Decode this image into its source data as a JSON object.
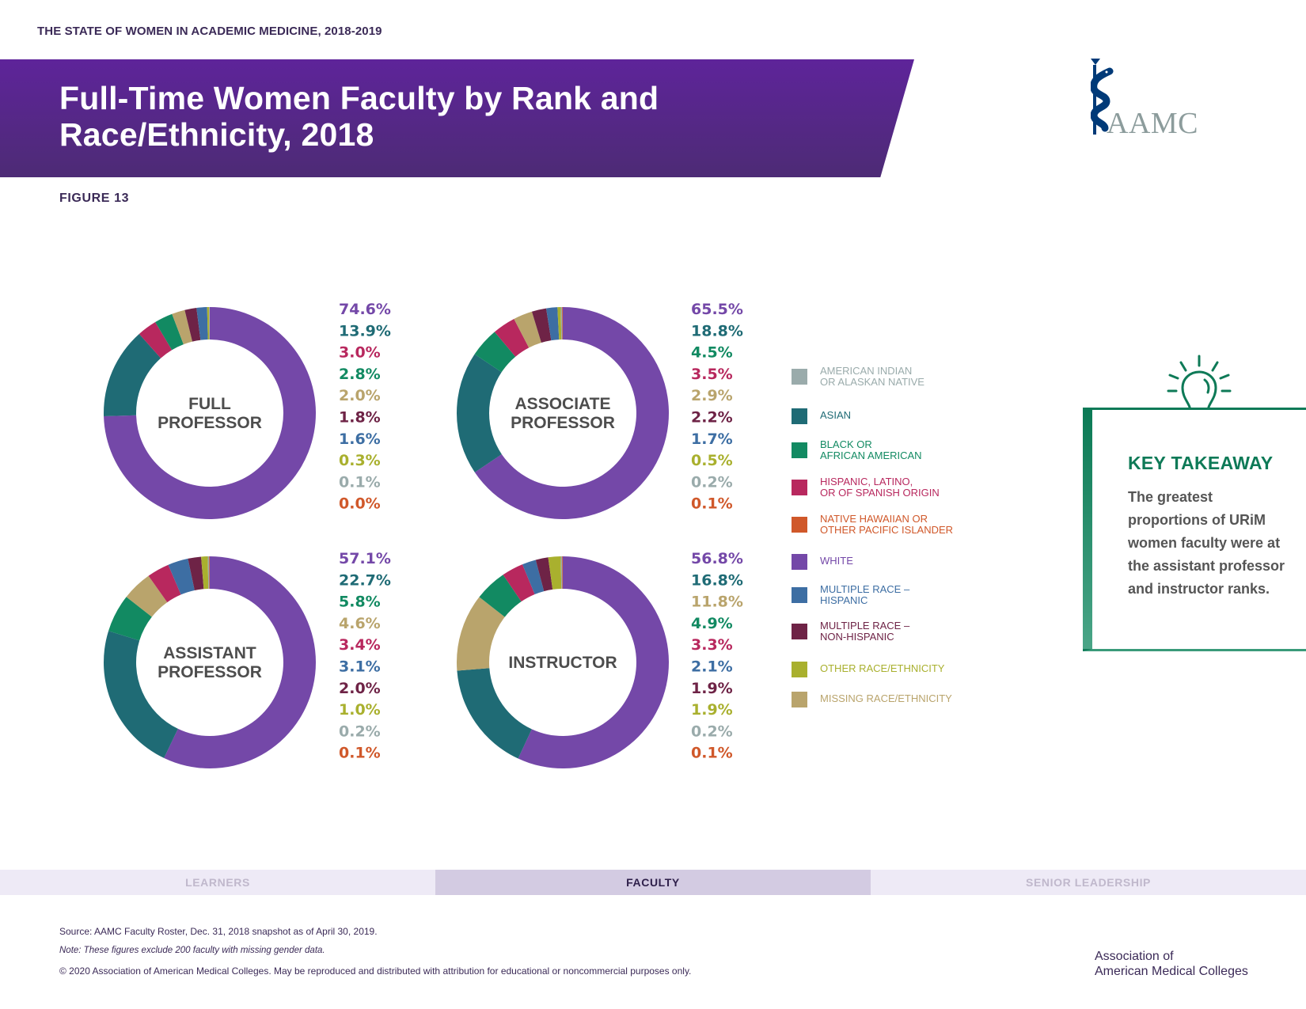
{
  "header": {
    "kicker": "THE STATE OF WOMEN IN ACADEMIC MEDICINE, 2018-2019",
    "title_line1": "Full-Time Women Faculty by Rank and",
    "title_line2": "Race/Ethnicity, 2018",
    "figure_label": "FIGURE 13",
    "logo_text": "AAMC",
    "logo_icon": "staff-of-asclepius-icon"
  },
  "colors": {
    "american_indian": "#9aabab",
    "asian": "#1f6b75",
    "black": "#128a62",
    "hispanic": "#b8285e",
    "nhpi": "#d0582a",
    "white": "#7448a8",
    "multi_hispanic": "#3d6ea3",
    "multi_non_hispanic": "#6e2346",
    "other": "#a9b02e",
    "missing": "#b9a46c",
    "banner": "#5e249a",
    "takeaway": "#0e7a57"
  },
  "chart_data": [
    {
      "type": "pie",
      "subtype": "donut",
      "title": "FULL PROFESSOR",
      "title_lines": [
        "FULL",
        "PROFESSOR"
      ],
      "categories": [
        "White",
        "Asian",
        "Hispanic, Latino, or of Spanish Origin",
        "Black or African American",
        "Missing Race/Ethnicity",
        "Multiple Race – Non-Hispanic",
        "Multiple Race – Hispanic",
        "Other Race/Ethnicity",
        "American Indian or Alaskan Native",
        "Native Hawaiian or Other Pacific Islander"
      ],
      "keys": [
        "white",
        "asian",
        "hispanic",
        "black",
        "missing",
        "multi_non_hispanic",
        "multi_hispanic",
        "other",
        "american_indian",
        "nhpi"
      ],
      "values": [
        74.6,
        13.9,
        3.0,
        2.8,
        2.0,
        1.8,
        1.6,
        0.3,
        0.1,
        0.0
      ],
      "labels": [
        "74.6%",
        "13.9%",
        "3.0%",
        "2.8%",
        "2.0%",
        "1.8%",
        "1.6%",
        "0.3%",
        "0.1%",
        "0.0%"
      ]
    },
    {
      "type": "pie",
      "subtype": "donut",
      "title": "ASSOCIATE PROFESSOR",
      "title_lines": [
        "ASSOCIATE",
        "PROFESSOR"
      ],
      "categories": [
        "White",
        "Asian",
        "Black or African American",
        "Hispanic, Latino, or of Spanish Origin",
        "Missing Race/Ethnicity",
        "Multiple Race – Non-Hispanic",
        "Multiple Race – Hispanic",
        "Other Race/Ethnicity",
        "American Indian or Alaskan Native",
        "Native Hawaiian or Other Pacific Islander"
      ],
      "keys": [
        "white",
        "asian",
        "black",
        "hispanic",
        "missing",
        "multi_non_hispanic",
        "multi_hispanic",
        "other",
        "american_indian",
        "nhpi"
      ],
      "values": [
        65.5,
        18.8,
        4.5,
        3.5,
        2.9,
        2.2,
        1.7,
        0.5,
        0.2,
        0.1
      ],
      "labels": [
        "65.5%",
        "18.8%",
        "4.5%",
        "3.5%",
        "2.9%",
        "2.2%",
        "1.7%",
        "0.5%",
        "0.2%",
        "0.1%"
      ]
    },
    {
      "type": "pie",
      "subtype": "donut",
      "title": "ASSISTANT PROFESSOR",
      "title_lines": [
        "ASSISTANT",
        "PROFESSOR"
      ],
      "categories": [
        "White",
        "Asian",
        "Black or African American",
        "Missing Race/Ethnicity",
        "Hispanic, Latino, or of Spanish Origin",
        "Multiple Race – Hispanic",
        "Multiple Race – Non-Hispanic",
        "Other Race/Ethnicity",
        "American Indian or Alaskan Native",
        "Native Hawaiian or Other Pacific Islander"
      ],
      "keys": [
        "white",
        "asian",
        "black",
        "missing",
        "hispanic",
        "multi_hispanic",
        "multi_non_hispanic",
        "other",
        "american_indian",
        "nhpi"
      ],
      "values": [
        57.1,
        22.7,
        5.8,
        4.6,
        3.4,
        3.1,
        2.0,
        1.0,
        0.2,
        0.1
      ],
      "labels": [
        "57.1%",
        "22.7%",
        "5.8%",
        "4.6%",
        "3.4%",
        "3.1%",
        "2.0%",
        "1.0%",
        "0.2%",
        "0.1%"
      ]
    },
    {
      "type": "pie",
      "subtype": "donut",
      "title": "INSTRUCTOR",
      "title_lines": [
        "INSTRUCTOR"
      ],
      "categories": [
        "White",
        "Asian",
        "Missing Race/Ethnicity",
        "Black or African American",
        "Hispanic, Latino, or of Spanish Origin",
        "Multiple Race – Hispanic",
        "Multiple Race – Non-Hispanic",
        "Other Race/Ethnicity",
        "American Indian or Alaskan Native",
        "Native Hawaiian or Other Pacific Islander"
      ],
      "keys": [
        "white",
        "asian",
        "missing",
        "black",
        "hispanic",
        "multi_hispanic",
        "multi_non_hispanic",
        "other",
        "american_indian",
        "nhpi"
      ],
      "values": [
        56.8,
        16.8,
        11.8,
        4.9,
        3.3,
        2.1,
        1.9,
        1.9,
        0.2,
        0.1
      ],
      "labels": [
        "56.8%",
        "16.8%",
        "11.8%",
        "4.9%",
        "3.3%",
        "2.1%",
        "1.9%",
        "1.9%",
        "0.2%",
        "0.1%"
      ]
    }
  ],
  "legend": [
    {
      "key": "american_indian",
      "lines": [
        "AMERICAN INDIAN",
        "OR ALASKAN NATIVE"
      ]
    },
    {
      "key": "asian",
      "lines": [
        "ASIAN"
      ]
    },
    {
      "key": "black",
      "lines": [
        "BLACK OR",
        "AFRICAN AMERICAN"
      ]
    },
    {
      "key": "hispanic",
      "lines": [
        "HISPANIC, LATINO,",
        "OR OF SPANISH ORIGIN"
      ]
    },
    {
      "key": "nhpi",
      "lines": [
        "NATIVE HAWAIIAN OR",
        "OTHER PACIFIC ISLANDER"
      ]
    },
    {
      "key": "white",
      "lines": [
        "WHITE"
      ]
    },
    {
      "key": "multi_hispanic",
      "lines": [
        "MULTIPLE RACE –",
        "HISPANIC"
      ]
    },
    {
      "key": "multi_non_hispanic",
      "lines": [
        "MULTIPLE RACE –",
        "NON-HISPANIC"
      ]
    },
    {
      "key": "other",
      "lines": [
        "OTHER RACE/ETHNICITY"
      ]
    },
    {
      "key": "missing",
      "lines": [
        "MISSING RACE/ETHNICITY"
      ]
    }
  ],
  "takeaway": {
    "icon": "lightbulb-icon",
    "title": "KEY TAKEAWAY",
    "body": "The greatest proportions of URiM women faculty were at the assistant professor and instructor ranks."
  },
  "nav": {
    "tabs": [
      {
        "label": "LEARNERS",
        "active": false
      },
      {
        "label": "FACULTY",
        "active": true
      },
      {
        "label": "SENIOR LEADERSHIP",
        "active": false
      }
    ]
  },
  "footer": {
    "source": "Source: AAMC Faculty Roster, Dec. 31, 2018 snapshot as of April 30, 2019.",
    "note": "Note: These figures exclude 200 faculty with missing gender data.",
    "copyright": "© 2020 Association of American Medical Colleges. May be reproduced and distributed with attribution for educational or noncommercial purposes only.",
    "org_line1": "Association of",
    "org_line2": "American Medical Colleges"
  }
}
